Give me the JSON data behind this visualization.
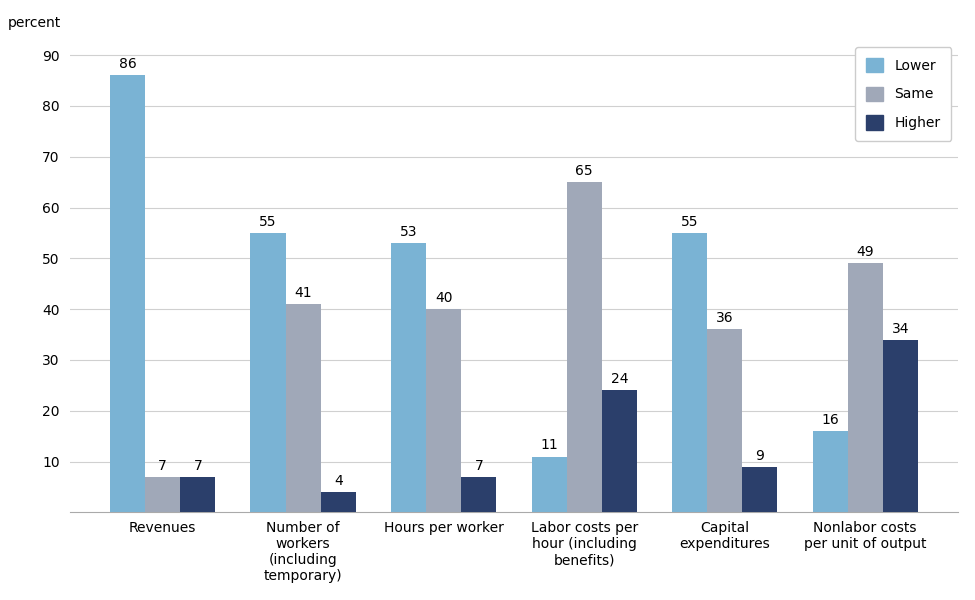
{
  "categories": [
    "Revenues",
    "Number of\nworkers\n(including\ntemporary)",
    "Hours per worker",
    "Labor costs per\nhour (including\nbenefits)",
    "Capital\nexpenditures",
    "Nonlabor costs\nper unit of output"
  ],
  "lower": [
    86,
    55,
    53,
    11,
    55,
    16
  ],
  "same": [
    7,
    41,
    40,
    65,
    36,
    49
  ],
  "higher": [
    7,
    4,
    7,
    24,
    9,
    34
  ],
  "color_lower": "#7ab3d4",
  "color_same": "#a0a8b8",
  "color_higher": "#2b3f6b",
  "ylabel": "percent",
  "ylim": [
    0,
    93
  ],
  "yticks": [
    10,
    20,
    30,
    40,
    50,
    60,
    70,
    80,
    90
  ],
  "legend_labels": [
    "Lower",
    "Same",
    "Higher"
  ],
  "bar_width": 0.25,
  "tick_fontsize": 10,
  "label_fontsize": 10,
  "annotation_fontsize": 10
}
